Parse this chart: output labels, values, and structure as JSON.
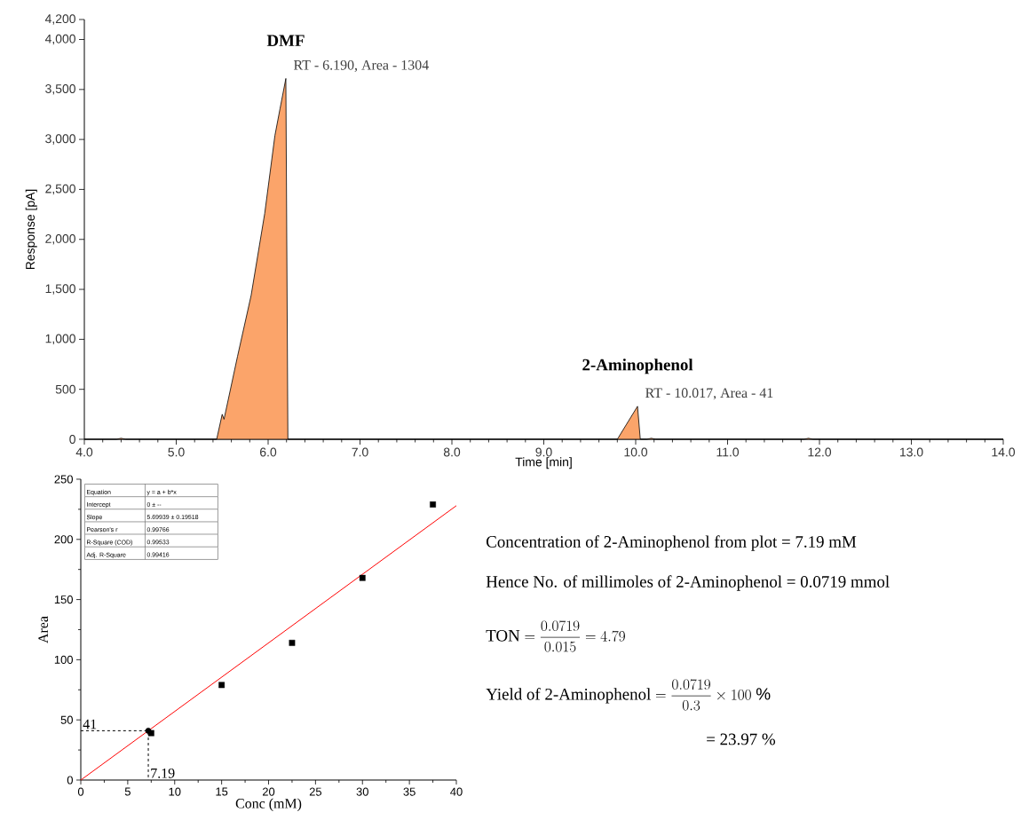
{
  "chart_data": [
    {
      "type": "area",
      "xlabel": "Time [min]",
      "ylabel": "Response [pA]",
      "color": "#fba46a",
      "x": [
        4.0,
        4.35,
        4.4,
        4.45,
        5.44,
        5.5,
        5.52,
        5.667,
        5.815,
        5.963,
        6.074,
        6.13,
        6.193,
        6.215,
        6.3,
        9.8,
        9.9,
        10.02,
        10.05,
        10.12,
        10.17,
        10.22,
        11.83,
        11.88,
        11.93,
        14.0
      ],
      "values": [
        0,
        0,
        10,
        0,
        0,
        250,
        200,
        830,
        1440,
        2260,
        3040,
        3310,
        3610,
        0,
        0,
        0,
        150,
        330,
        0,
        0,
        10,
        0,
        0,
        10,
        0,
        0
      ],
      "xlim": [
        4,
        14
      ],
      "ylim": [
        0,
        4200
      ],
      "xticks": [
        {
          "value": 4,
          "label": "4.0"
        },
        {
          "value": 5,
          "label": "5.0"
        },
        {
          "value": 6,
          "label": "6.0"
        },
        {
          "value": 7,
          "label": "7.0"
        },
        {
          "value": 8,
          "label": "8.0"
        },
        {
          "value": 9,
          "label": "9.0"
        },
        {
          "value": 10,
          "label": "10.0"
        },
        {
          "value": 11,
          "label": "11.0"
        },
        {
          "value": 12,
          "label": "12.0"
        },
        {
          "value": 13,
          "label": "13.0"
        },
        {
          "value": 14,
          "label": "14.0"
        }
      ],
      "yticks": [
        0,
        500,
        {
          "value": 1000,
          "label": "1,000"
        },
        {
          "value": 1500,
          "label": "1,500"
        },
        {
          "value": 2000,
          "label": "2,000"
        },
        {
          "value": 2500,
          "label": "2,500"
        },
        {
          "value": 3000,
          "label": "3,000"
        },
        {
          "value": 3500,
          "label": "3,500"
        },
        {
          "value": 4000,
          "label": "4,000"
        },
        {
          "value": 4200,
          "label": "4,200"
        }
      ],
      "annotations": [
        {
          "text": "DMF",
          "x": 6.193,
          "y": 3610
        },
        {
          "text": "RT - 6.190, Area - 1304",
          "x": 6.193,
          "y": 3610
        },
        {
          "text": "2-Aminophenol",
          "x": 10.02,
          "y": 330
        },
        {
          "text": "RT - 10.017, Area - 41",
          "x": 10.02,
          "y": 330
        }
      ]
    },
    {
      "type": "scatter",
      "xlabel": "Conc (mM)",
      "ylabel": "Area",
      "xlim": [
        0,
        40
      ],
      "ylim": [
        0,
        250
      ],
      "xticks": [
        0,
        5,
        10,
        15,
        20,
        25,
        30,
        35,
        40
      ],
      "yticks": [
        0,
        50,
        100,
        150,
        200,
        250
      ],
      "series": [
        {
          "type": "scatter",
          "marker": "square",
          "color": "#000000",
          "x": [
            7.5,
            15,
            22.5,
            30,
            37.5
          ],
          "values": [
            39,
            79,
            114,
            168,
            229
          ]
        },
        {
          "type": "line",
          "color": "#ff0000",
          "x": [
            0,
            40
          ],
          "values": [
            0,
            228
          ]
        },
        {
          "type": "line",
          "line_style": "dashed",
          "color": "#000000",
          "x": [
            0,
            7.19,
            7.19
          ],
          "values": [
            41,
            41,
            0
          ]
        },
        {
          "type": "scatter",
          "marker": "circle",
          "color": "#000000",
          "x": [
            7.19
          ],
          "values": [
            41
          ]
        }
      ],
      "annotations": [
        {
          "text": "41",
          "x": 0,
          "y": 41
        },
        {
          "text": "7.19",
          "x": 7.19,
          "y": 0
        },
        "Equation",
        "y = a + b*x",
        "Intercept",
        "0 ± --",
        "Slope",
        "5.69939 ± 0.19518",
        "Pearson's r",
        "0.99766",
        "R-Square (COD)",
        "0.99533",
        "Adj. R-Square",
        "0.99416"
      ]
    },
    {
      "type": "other",
      "annotations": [
        "Concentration of 2-Aminophenol from plot = 7.19 mM",
        "Hence No. of millimoles of 2-Aminophenol = 0.0719 mmol",
        "\\text{TON} = \\frac{0.0719}{0.015} = 4.79",
        "\\text{Yield of 2-Aminophenol} = \\frac{0.0719}{0.3} \\times 100\\ \\%",
        "= 23.97 %"
      ]
    }
  ]
}
